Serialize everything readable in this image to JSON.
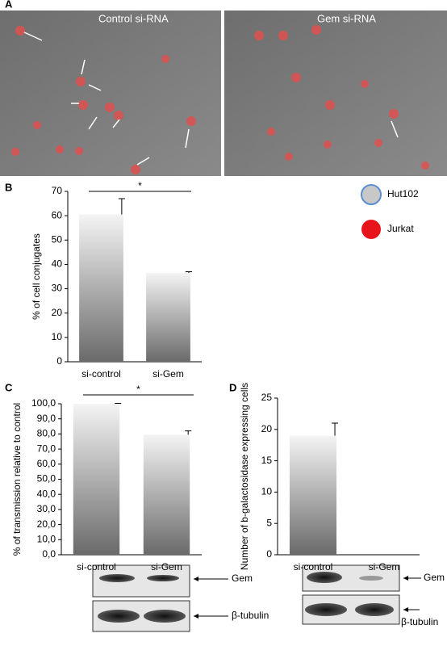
{
  "panel_labels": [
    "A",
    "B",
    "C",
    "D"
  ],
  "images": {
    "left_label": "Control si-RNA",
    "right_label": "Gem si-RNA"
  },
  "cell_legend": [
    "Hut102",
    "Jurkat"
  ],
  "blots": {
    "C": [
      "Gem",
      "β-tubulin"
    ],
    "D": [
      "Gem",
      "β-tubulin"
    ]
  },
  "chart_data": [
    {
      "type": "bar",
      "y_label": "% of cell conjugates",
      "categories": [
        "si-control",
        "si-Gem"
      ],
      "values": [
        60.5,
        36.5
      ],
      "errors": [
        6.5,
        0.5
      ],
      "ylim": [
        0,
        70
      ],
      "yticks": [
        0,
        10,
        20,
        30,
        40,
        50,
        60,
        70
      ],
      "annotation": "*"
    },
    {
      "type": "bar",
      "y_label": "% of transmission relative to control",
      "categories": [
        "si-control",
        "si-Gem"
      ],
      "values": [
        100,
        79.5
      ],
      "errors": [
        0.3,
        2.5
      ],
      "ylim": [
        0,
        100
      ],
      "yticks": [
        {
          "value": 0,
          "label": "0,0"
        },
        {
          "value": 10,
          "label": "10,0"
        },
        {
          "value": 20,
          "label": "20,0"
        },
        {
          "value": 30,
          "label": "30,0"
        },
        {
          "value": 40,
          "label": "40,0"
        },
        {
          "value": 50,
          "label": "50,0"
        },
        {
          "value": 60,
          "label": "60,0"
        },
        {
          "value": 70,
          "label": "70,0"
        },
        {
          "value": 80,
          "label": "80,0"
        },
        {
          "value": 90,
          "label": "90,0"
        },
        {
          "value": 100,
          "label": "100,0"
        }
      ],
      "annotation": "*"
    },
    {
      "type": "bar",
      "y_label": "Number of b-galactosidase expressing cells",
      "categories": [
        "si-control",
        "si-Gem"
      ],
      "values": [
        19,
        0
      ],
      "errors": [
        2,
        0
      ],
      "ylim": [
        0,
        25
      ],
      "yticks": [
        0,
        5,
        10,
        15,
        20,
        25
      ]
    }
  ]
}
